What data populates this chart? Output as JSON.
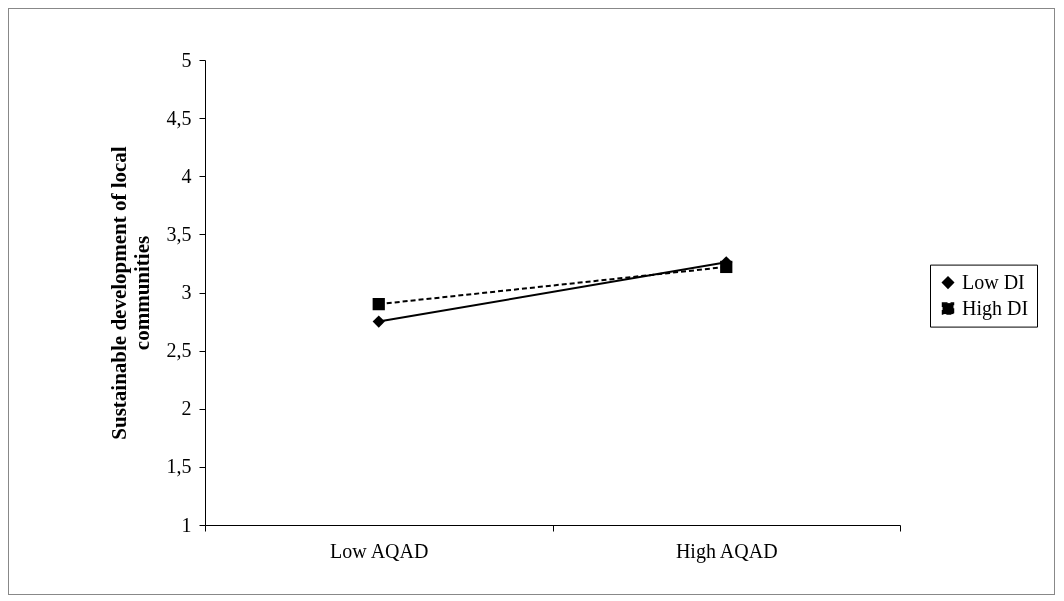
{
  "chart_data": {
    "type": "line",
    "ylabel": "Sustainable development of local communities",
    "categories": [
      "Low AQAD",
      "High AQAD"
    ],
    "series": [
      {
        "name": "Low DI",
        "color": "#000000",
        "values": [
          2.75,
          3.26
        ],
        "marker": "diamond",
        "line_style": "solid"
      },
      {
        "name": "High DI",
        "color": "#000000",
        "values": [
          2.9,
          3.22
        ],
        "marker": "square",
        "line_style": "dashed"
      }
    ],
    "ylim": [
      1,
      5
    ],
    "yticks": [
      1,
      {
        "value": 1.5,
        "label": "1,5"
      },
      2,
      {
        "value": 2.5,
        "label": "2,5"
      },
      3,
      {
        "value": 3.5,
        "label": "3,5"
      },
      4,
      {
        "value": 4.5,
        "label": "4,5"
      },
      5
    ],
    "grid": false,
    "legend": "right"
  }
}
